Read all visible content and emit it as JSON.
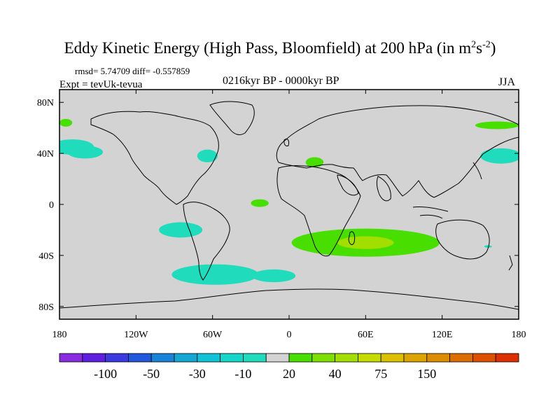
{
  "title": {
    "main": "Eddy Kinetic Energy (High Pass, Bloomfield) at 200 hPa (in m",
    "sup1": "2",
    "mid": "s",
    "sup2": "-2",
    "close": ")"
  },
  "stats": {
    "text": "rmsd= 5.74709 diff= -0.557859"
  },
  "expt": {
    "text": "Expt = tevUk-tevua"
  },
  "period": {
    "text": "0216kyr BP - 0000kyr BP"
  },
  "season": {
    "text": "JJA"
  },
  "map_data": {
    "projection": "cylindrical-equidistant",
    "lon_range": [
      -180,
      180
    ],
    "lat_range": [
      -90,
      90
    ],
    "x_ticks": [
      {
        "lon": -180,
        "label": "180"
      },
      {
        "lon": -120,
        "label": "120W"
      },
      {
        "lon": -60,
        "label": "60W"
      },
      {
        "lon": 0,
        "label": "0"
      },
      {
        "lon": 60,
        "label": "60E"
      },
      {
        "lon": 120,
        "label": "120E"
      },
      {
        "lon": 180,
        "label": "180"
      }
    ],
    "y_ticks": [
      {
        "lat": 80,
        "label": "80N"
      },
      {
        "lat": 40,
        "label": "40N"
      },
      {
        "lat": 0,
        "label": "0"
      },
      {
        "lat": -40,
        "label": "40S"
      },
      {
        "lat": -80,
        "label": "80S"
      }
    ],
    "background_color": "#d3d3d3",
    "anomaly_regions": [
      {
        "name": "north-atlantic-west",
        "lon": -170,
        "lat": 45,
        "rlon": 17,
        "rlat": 6,
        "color": "#21dbbd"
      },
      {
        "name": "north-atlantic-east-arc",
        "lon": -160,
        "lat": 41,
        "rlon": 14,
        "rlat": 5,
        "color": "#21dbbd"
      },
      {
        "name": "off-us-east-coast",
        "lon": -64,
        "lat": 38,
        "rlon": 8,
        "rlat": 5,
        "color": "#21dbbd"
      },
      {
        "name": "tropical-atlantic",
        "lon": -23,
        "lat": 1,
        "rlon": 7,
        "rlat": 3,
        "color": "#48df00"
      },
      {
        "name": "mediterranean",
        "lon": 20,
        "lat": 33,
        "rlon": 7,
        "rlat": 4,
        "color": "#48df00"
      },
      {
        "name": "scandinavia-west",
        "lon": -175,
        "lat": 64,
        "rlon": 5,
        "rlat": 3,
        "color": "#48df00"
      },
      {
        "name": "east-siberia",
        "lon": 163,
        "lat": 62,
        "rlon": 17,
        "rlat": 3,
        "color": "#48df00"
      },
      {
        "name": "north-pacific",
        "lon": 166,
        "lat": 38,
        "rlon": 16,
        "rlat": 6,
        "color": "#21dbbd"
      },
      {
        "name": "south-pacific-east",
        "lon": -85,
        "lat": -20,
        "rlon": 17,
        "rlat": 6,
        "color": "#21dbbd"
      },
      {
        "name": "southern-ocean-indian-outer",
        "lon": 60,
        "lat": -30,
        "rlon": 58,
        "rlat": 11,
        "color": "#48df00"
      },
      {
        "name": "southern-ocean-indian-inner",
        "lon": 60,
        "lat": -30,
        "rlon": 22,
        "rlat": 5,
        "color": "#a2df00"
      },
      {
        "name": "drake-passage",
        "lon": -58,
        "lat": -55,
        "rlon": 34,
        "rlat": 8,
        "color": "#21dbbd"
      },
      {
        "name": "south-atlantic",
        "lon": -12,
        "lat": -56,
        "rlon": 17,
        "rlat": 5,
        "color": "#21dbbd"
      },
      {
        "name": "australia-east",
        "lon": 156,
        "lat": -33,
        "rlon": 3,
        "rlat": 1,
        "color": "#21dbbd"
      }
    ]
  },
  "colorbar": {
    "colors": [
      "#8a2be2",
      "#5f1fe0",
      "#3a3ae0",
      "#2258dc",
      "#1883d8",
      "#14a7d4",
      "#12c3d8",
      "#14d7ca",
      "#21dbbd",
      "#d3d3d3",
      "#48df00",
      "#7ddf00",
      "#a2df00",
      "#c6dc00",
      "#dcc000",
      "#dca400",
      "#dc8c00",
      "#dc6e00",
      "#dc5000",
      "#dc3000"
    ],
    "labels": [
      {
        "index": 2,
        "text": "-100"
      },
      {
        "index": 4,
        "text": "-50"
      },
      {
        "index": 6,
        "text": "-30"
      },
      {
        "index": 8,
        "text": "-10"
      },
      {
        "index": 10,
        "text": "20"
      },
      {
        "index": 12,
        "text": "40"
      },
      {
        "index": 14,
        "text": "75"
      },
      {
        "index": 16,
        "text": "150"
      }
    ]
  }
}
